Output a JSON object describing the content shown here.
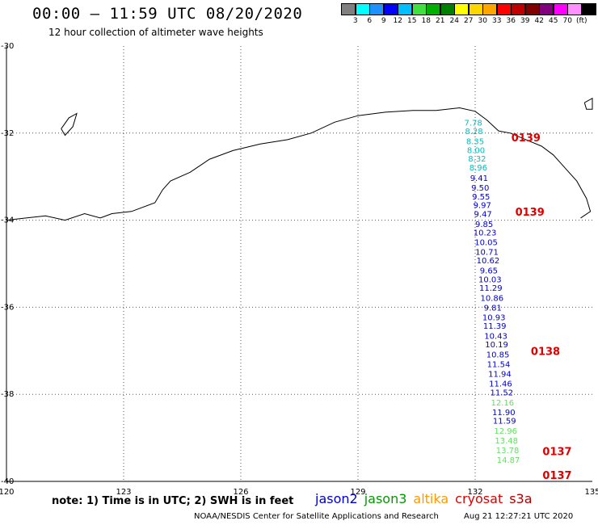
{
  "title": "00:00 – 11:59 UTC 08/20/2020",
  "subtitle": "12 hour collection of altimeter wave heights",
  "colorbar": {
    "colors": [
      "#808080",
      "#00ffff",
      "#1e90ff",
      "#0000ff",
      "#00bfff",
      "#40e040",
      "#00b000",
      "#008000",
      "#ffff00",
      "#ffd700",
      "#ffa500",
      "#ff0000",
      "#c00000",
      "#800000",
      "#800080",
      "#ff00ff",
      "#ff90ff",
      "#000000"
    ],
    "labels": [
      "3",
      "6",
      "9",
      "12",
      "15",
      "18",
      "21",
      "24",
      "27",
      "30",
      "33",
      "36",
      "39",
      "42",
      "45",
      "70",
      "(ft)"
    ]
  },
  "axes": {
    "lon_ticks": [
      "120",
      "123",
      "126",
      "129",
      "132",
      "135"
    ],
    "lat_ticks": [
      "-30",
      "-32",
      "-34",
      "-36",
      "-38",
      "-40"
    ]
  },
  "map_data": {
    "lon_range": [
      120,
      135
    ],
    "lat_range": [
      -40,
      -30
    ],
    "observations": [
      {
        "lon": 131.95,
        "lat": -31.75,
        "swh": "7.78",
        "c": "#00c0c0"
      },
      {
        "lon": 131.97,
        "lat": -31.95,
        "swh": "8.28",
        "c": "#00c0c0"
      },
      {
        "lon": 132.0,
        "lat": -32.18,
        "swh": "8.35",
        "c": "#00c0c0"
      },
      {
        "lon": 132.02,
        "lat": -32.38,
        "swh": "8.00",
        "c": "#00c0c0"
      },
      {
        "lon": 132.05,
        "lat": -32.58,
        "swh": "8.32",
        "c": "#00c0c0"
      },
      {
        "lon": 132.08,
        "lat": -32.78,
        "swh": "8.96",
        "c": "#00c0c0"
      },
      {
        "lon": 132.1,
        "lat": -33.02,
        "swh": "9.41",
        "c": "#0000cc"
      },
      {
        "lon": 132.13,
        "lat": -33.25,
        "swh": "9.50",
        "c": "#0000cc"
      },
      {
        "lon": 132.15,
        "lat": -33.45,
        "swh": "9.55",
        "c": "#0000cc"
      },
      {
        "lon": 132.18,
        "lat": -33.65,
        "swh": "9.97",
        "c": "#0000cc"
      },
      {
        "lon": 132.2,
        "lat": -33.85,
        "swh": "9.47",
        "c": "#0000cc"
      },
      {
        "lon": 132.23,
        "lat": -34.08,
        "swh": "9.85",
        "c": "#0000cc"
      },
      {
        "lon": 132.25,
        "lat": -34.28,
        "swh": "10.23",
        "c": "#0000cc"
      },
      {
        "lon": 132.28,
        "lat": -34.5,
        "swh": "10.05",
        "c": "#0000cc"
      },
      {
        "lon": 132.3,
        "lat": -34.72,
        "swh": "10.71",
        "c": "#0000cc"
      },
      {
        "lon": 132.33,
        "lat": -34.92,
        "swh": "10.62",
        "c": "#0000cc"
      },
      {
        "lon": 132.35,
        "lat": -35.15,
        "swh": "9.65",
        "c": "#0000cc"
      },
      {
        "lon": 132.38,
        "lat": -35.35,
        "swh": "10.03",
        "c": "#0000cc"
      },
      {
        "lon": 132.4,
        "lat": -35.55,
        "swh": "11.29",
        "c": "#0000cc"
      },
      {
        "lon": 132.43,
        "lat": -35.78,
        "swh": "10.86",
        "c": "#0000cc"
      },
      {
        "lon": 132.45,
        "lat": -36.0,
        "swh": "9.81",
        "c": "#0000cc"
      },
      {
        "lon": 132.48,
        "lat": -36.22,
        "swh": "10.93",
        "c": "#0000cc"
      },
      {
        "lon": 132.5,
        "lat": -36.42,
        "swh": "11.39",
        "c": "#0000cc"
      },
      {
        "lon": 132.53,
        "lat": -36.65,
        "swh": "10.43",
        "c": "#0000cc"
      },
      {
        "lon": 132.55,
        "lat": -36.85,
        "swh": "10.19",
        "c": "#0000cc"
      },
      {
        "lon": 132.58,
        "lat": -37.08,
        "swh": "10.85",
        "c": "#0000cc"
      },
      {
        "lon": 132.6,
        "lat": -37.3,
        "swh": "11.54",
        "c": "#0000cc"
      },
      {
        "lon": 132.63,
        "lat": -37.52,
        "swh": "11.94",
        "c": "#0000cc"
      },
      {
        "lon": 132.65,
        "lat": -37.75,
        "swh": "11.46",
        "c": "#0000cc"
      },
      {
        "lon": 132.68,
        "lat": -37.95,
        "swh": "11.52",
        "c": "#0000cc"
      },
      {
        "lon": 132.7,
        "lat": -38.18,
        "swh": "12.16",
        "c": "#66dd66"
      },
      {
        "lon": 132.73,
        "lat": -38.4,
        "swh": "11.90",
        "c": "#0000cc"
      },
      {
        "lon": 132.75,
        "lat": -38.6,
        "swh": "11.59",
        "c": "#0000cc"
      },
      {
        "lon": 132.78,
        "lat": -38.83,
        "swh": "12.96",
        "c": "#66dd66"
      },
      {
        "lon": 132.8,
        "lat": -39.05,
        "swh": "13.48",
        "c": "#66dd66"
      },
      {
        "lon": 132.83,
        "lat": -39.28,
        "swh": "13.78",
        "c": "#66dd66"
      },
      {
        "lon": 132.85,
        "lat": -39.5,
        "swh": "14.87",
        "c": "#66dd66"
      }
    ],
    "time_labels": [
      {
        "lon": 133.3,
        "lat": -32.1,
        "text": "0139"
      },
      {
        "lon": 133.4,
        "lat": -33.8,
        "text": "0139"
      },
      {
        "lon": 133.8,
        "lat": -37.0,
        "text": "0138"
      },
      {
        "lon": 134.1,
        "lat": -39.3,
        "text": "0137"
      },
      {
        "lon": 134.1,
        "lat": -39.85,
        "text": "0137"
      }
    ],
    "time_label_color": "#dd0000",
    "coastline": [
      [
        120.0,
        -34.0
      ],
      [
        120.5,
        -33.95
      ],
      [
        121.0,
        -33.9
      ],
      [
        121.5,
        -34.0
      ],
      [
        122.0,
        -33.85
      ],
      [
        122.4,
        -33.95
      ],
      [
        122.7,
        -33.85
      ],
      [
        123.2,
        -33.8
      ],
      [
        123.8,
        -33.6
      ],
      [
        124.0,
        -33.3
      ],
      [
        124.2,
        -33.1
      ],
      [
        124.7,
        -32.9
      ],
      [
        125.2,
        -32.6
      ],
      [
        125.8,
        -32.4
      ],
      [
        126.5,
        -32.25
      ],
      [
        127.2,
        -32.15
      ],
      [
        127.8,
        -32.0
      ],
      [
        128.4,
        -31.75
      ],
      [
        129.0,
        -31.6
      ],
      [
        129.7,
        -31.52
      ],
      [
        130.4,
        -31.48
      ],
      [
        131.0,
        -31.48
      ],
      [
        131.6,
        -31.42
      ],
      [
        132.0,
        -31.5
      ],
      [
        132.3,
        -31.7
      ],
      [
        132.6,
        -31.95
      ],
      [
        132.9,
        -32.0
      ],
      [
        133.3,
        -32.15
      ],
      [
        133.7,
        -32.3
      ],
      [
        134.0,
        -32.5
      ],
      [
        134.3,
        -32.8
      ],
      [
        134.6,
        -33.1
      ],
      [
        134.85,
        -33.5
      ],
      [
        134.95,
        -33.8
      ],
      [
        134.7,
        -33.95
      ]
    ],
    "islands": [
      [
        [
          121.4,
          -31.9
        ],
        [
          121.6,
          -31.65
        ],
        [
          121.8,
          -31.55
        ],
        [
          121.7,
          -31.85
        ],
        [
          121.5,
          -32.05
        ],
        [
          121.4,
          -31.9
        ]
      ],
      [
        [
          134.8,
          -31.3
        ],
        [
          135.0,
          -31.2
        ],
        [
          135.0,
          -31.45
        ],
        [
          134.85,
          -31.45
        ],
        [
          134.8,
          -31.3
        ]
      ]
    ]
  },
  "note": "note: 1) Time is in UTC; 2) SWH is in feet",
  "missions": [
    {
      "name": "jason2",
      "color": "#0000cc"
    },
    {
      "name": "jason3",
      "color": "#009900"
    },
    {
      "name": "altika",
      "color": "#ff9900"
    },
    {
      "name": "cryosat",
      "color": "#dd0000"
    },
    {
      "name": "s3a",
      "color": "#aa0000"
    }
  ],
  "footer": {
    "credit": "NOAA/NESDIS Center for Satellite Applications and Research",
    "timestamp": "Aug 21 12:27:21 UTC 2020"
  }
}
